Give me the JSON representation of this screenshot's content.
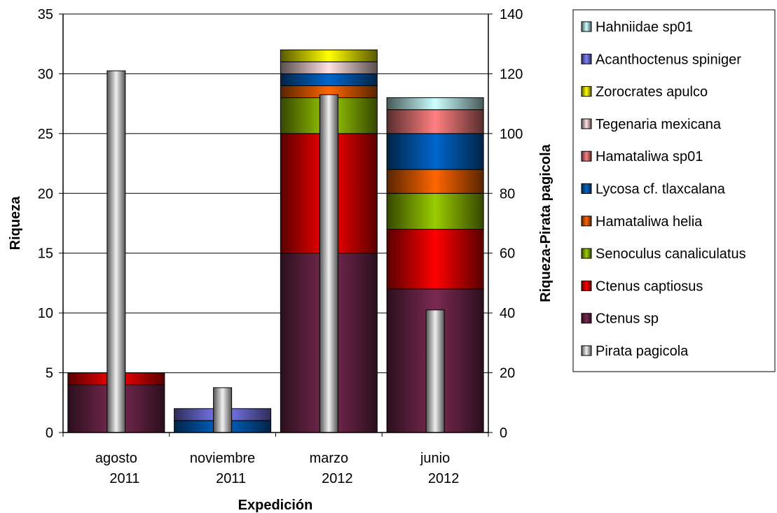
{
  "chart_data": {
    "type": "bar",
    "stacked": true,
    "xlabel": "Expedición",
    "ylabel": "Riqueza",
    "y2label": "Riqueza-Pirata pagicola",
    "ylim": [
      0,
      35
    ],
    "y2lim": [
      0,
      140
    ],
    "yticks": [
      "0",
      "5",
      "10",
      "15",
      "20",
      "25",
      "30",
      "35"
    ],
    "y2ticks": [
      "0",
      "20",
      "40",
      "60",
      "80",
      "100",
      "120",
      "140"
    ],
    "grid": true,
    "legend": "right",
    "categories": [
      {
        "line1": "agosto",
        "line2": "2011"
      },
      {
        "line1": "noviembre",
        "line2": "2011"
      },
      {
        "line1": "marzo",
        "line2": "2012"
      },
      {
        "line1": "junio",
        "line2": "2012"
      }
    ],
    "series": [
      {
        "name": "Ctenus sp",
        "color": "#7b2a52",
        "values": [
          4,
          0,
          15,
          12
        ]
      },
      {
        "name": "Ctenus captiosus",
        "color": "#ff0000",
        "values": [
          1,
          0,
          10,
          5
        ]
      },
      {
        "name": "Senoculus canaliculatus",
        "color": "#99cc00",
        "values": [
          0,
          0,
          3,
          3
        ]
      },
      {
        "name": "Hamataliwa helia",
        "color": "#ff6600",
        "values": [
          0,
          0,
          1,
          2
        ]
      },
      {
        "name": "Lycosa cf. tlaxcalana",
        "color": "#0066cc",
        "values": [
          0,
          1,
          1,
          3
        ]
      },
      {
        "name": "Hamataliwa sp01",
        "color": "#ff8080",
        "values": [
          0,
          0,
          0,
          2
        ]
      },
      {
        "name": "Tegenaria mexicana",
        "color": "#ffe0e0",
        "values": [
          0,
          0,
          1,
          0
        ]
      },
      {
        "name": "Zorocrates apulco",
        "color": "#ffff00",
        "values": [
          0,
          0,
          1,
          0
        ]
      },
      {
        "name": "Acanthoctenus spiniger",
        "color": "#8080ff",
        "values": [
          0,
          1,
          0,
          0
        ]
      },
      {
        "name": "Hahniidae sp01",
        "color": "#ccffff",
        "values": [
          0,
          0,
          0,
          1
        ]
      }
    ],
    "secondary_series": {
      "name": "Pirata pagicola",
      "color": "#f0f0f0",
      "axis": "right",
      "values": [
        121,
        15,
        113,
        41
      ]
    },
    "legend_order": [
      "Hahniidae sp01",
      "Acanthoctenus spiniger",
      "Zorocrates apulco",
      "Tegenaria mexicana",
      "Hamataliwa sp01",
      "Lycosa cf. tlaxcalana",
      "Hamataliwa helia",
      "Senoculus canaliculatus",
      "Ctenus captiosus",
      "Ctenus sp",
      "Pirata pagicola"
    ]
  }
}
